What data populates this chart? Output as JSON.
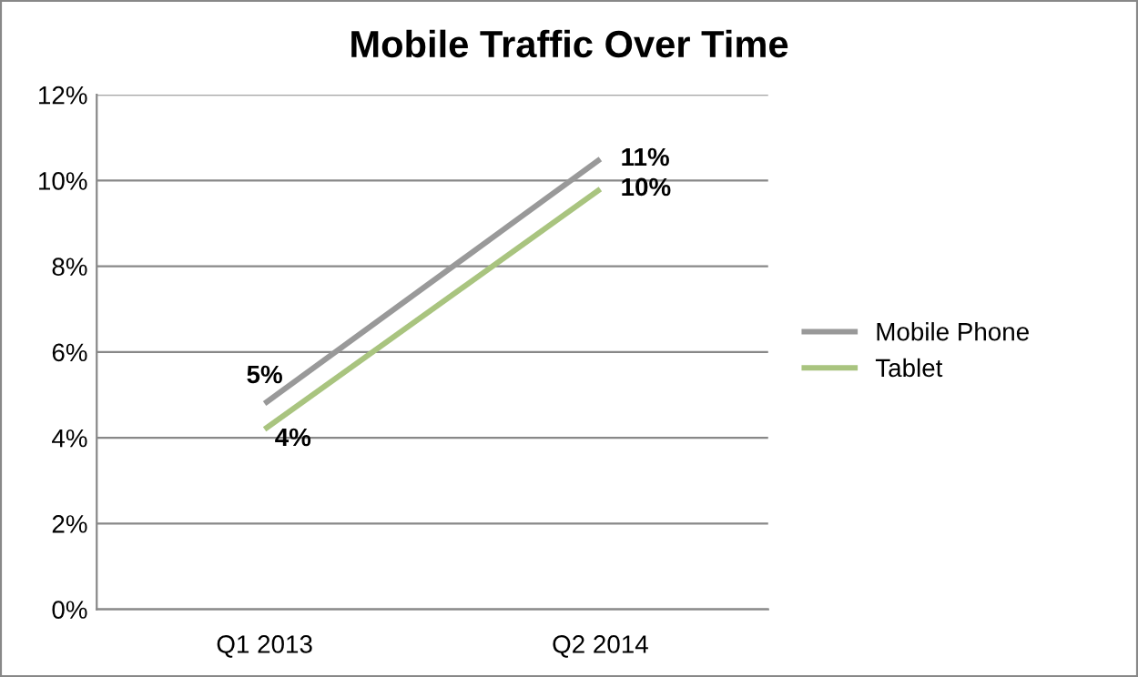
{
  "chart_data": {
    "type": "line",
    "title": "Mobile Traffic Over Time",
    "categories": [
      "Q1 2013",
      "Q2 2014"
    ],
    "series": [
      {
        "name": "Mobile Phone",
        "color": "#999999",
        "values": [
          4.8,
          10.5
        ],
        "value_labels": [
          "5%",
          "11%"
        ]
      },
      {
        "name": "Tablet",
        "color": "#a9c47f",
        "values": [
          4.2,
          9.8
        ],
        "value_labels": [
          "4%",
          "10%"
        ]
      }
    ],
    "ylim": [
      0,
      12
    ],
    "yticks": [
      {
        "value": 0,
        "label": "0%"
      },
      {
        "value": 2,
        "label": "2%"
      },
      {
        "value": 4,
        "label": "4%"
      },
      {
        "value": 6,
        "label": "6%"
      },
      {
        "value": 8,
        "label": "8%"
      },
      {
        "value": 10,
        "label": "10%"
      },
      {
        "value": 12,
        "label": "12%"
      }
    ],
    "grid": "y",
    "legend": "right",
    "marker": "none",
    "line_style": "solid"
  }
}
